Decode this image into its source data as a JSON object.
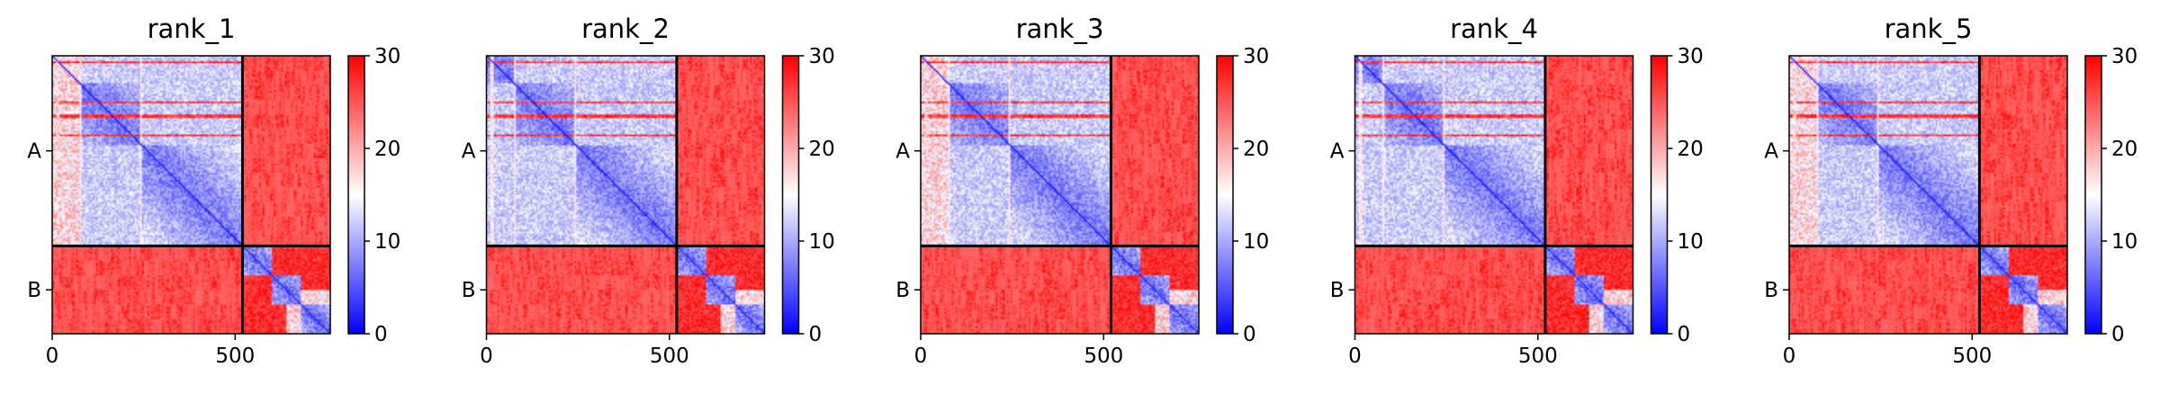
{
  "chart_data": {
    "type": "heatmap",
    "panels": [
      {
        "title": "rank_1",
        "variant": 0
      },
      {
        "title": "rank_2",
        "variant": 1
      },
      {
        "title": "rank_3",
        "variant": 2
      },
      {
        "title": "rank_4",
        "variant": 3
      },
      {
        "title": "rank_5",
        "variant": 4
      }
    ],
    "x_ticks": [
      {
        "value": 0,
        "label": "0"
      },
      {
        "value": 500,
        "label": "500"
      }
    ],
    "x_range": [
      0,
      760
    ],
    "y_range": [
      0,
      760
    ],
    "chain_boundary": 520,
    "chains": [
      {
        "label": "A",
        "start": 0,
        "end": 520
      },
      {
        "label": "B",
        "start": 520,
        "end": 760
      }
    ],
    "colorbar": {
      "range": [
        0,
        30
      ],
      "ticks": [
        {
          "value": 0,
          "label": "0"
        },
        {
          "value": 10,
          "label": "10"
        },
        {
          "value": 20,
          "label": "20"
        },
        {
          "value": 30,
          "label": "30"
        }
      ],
      "colors": [
        "#0000ff",
        "#ffffff",
        "#ff0000"
      ]
    },
    "colormap": "bwr"
  }
}
